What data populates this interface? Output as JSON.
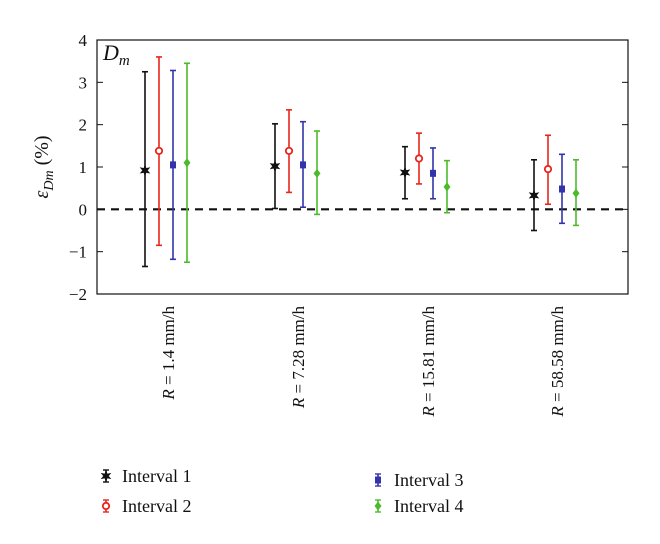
{
  "chart_data": {
    "type": "errorbar",
    "panel_label": "D",
    "panel_label_sub": "m",
    "ylabel_main": "ε",
    "ylabel_sub": "Dm",
    "ylabel_unit": " (%)",
    "ylim": [
      -2,
      4
    ],
    "yticks": [
      4,
      3,
      2,
      1,
      0,
      -1,
      -2
    ],
    "ytick_labels": [
      "4",
      "3",
      "2",
      "1",
      "0",
      "−1",
      "−2"
    ],
    "reference_line": 0,
    "categories": [
      {
        "var": "R",
        "rest": " = 1.4 mm/h"
      },
      {
        "var": "R",
        "rest": " = 7.28 mm/h"
      },
      {
        "var": "R",
        "rest": " = 15.81 mm/h"
      },
      {
        "var": "R",
        "rest": " = 58.58 mm/h"
      }
    ],
    "series": [
      {
        "name": "Interval 1",
        "color": "#111111",
        "marker": "star",
        "values": [
          0.92,
          1.02,
          0.87,
          0.33
        ],
        "lower": [
          -1.35,
          0.02,
          0.25,
          -0.5
        ],
        "upper": [
          3.25,
          2.02,
          1.48,
          1.17
        ]
      },
      {
        "name": "Interval 2",
        "color": "#e8261c",
        "marker": "circle",
        "values": [
          1.38,
          1.38,
          1.2,
          0.95
        ],
        "lower": [
          -0.85,
          0.4,
          0.6,
          0.12
        ],
        "upper": [
          3.6,
          2.35,
          1.8,
          1.75
        ]
      },
      {
        "name": "Interval 3",
        "color": "#3333aa",
        "marker": "square",
        "values": [
          1.05,
          1.05,
          0.85,
          0.48
        ],
        "lower": [
          -1.18,
          0.05,
          0.25,
          -0.33
        ],
        "upper": [
          3.28,
          2.07,
          1.45,
          1.3
        ]
      },
      {
        "name": "Interval 4",
        "color": "#4cbb2a",
        "marker": "diamond",
        "values": [
          1.1,
          0.85,
          0.53,
          0.38
        ],
        "lower": [
          -1.25,
          -0.12,
          -0.08,
          -0.38
        ],
        "upper": [
          3.45,
          1.85,
          1.15,
          1.17
        ]
      }
    ],
    "legend_position": "bottom"
  }
}
